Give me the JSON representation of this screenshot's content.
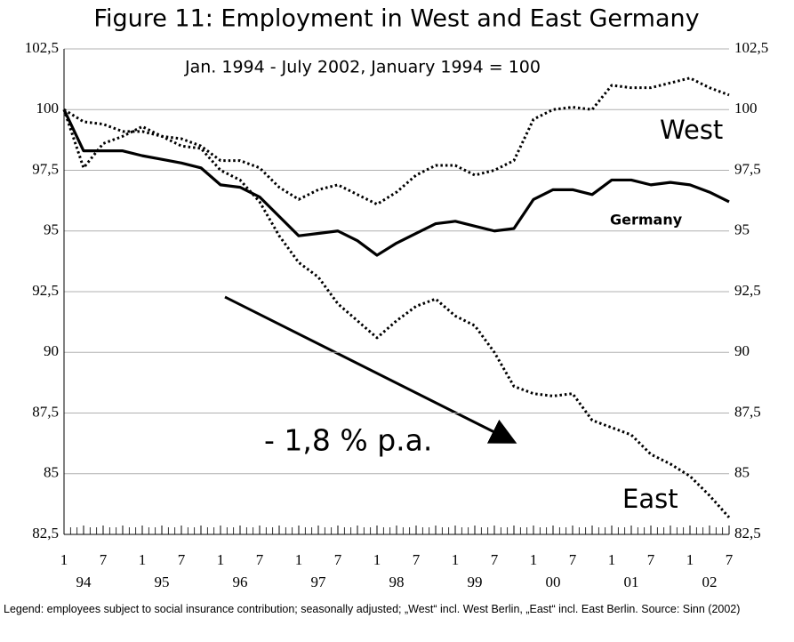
{
  "chart_data": {
    "type": "line",
    "title": "Figure 11: Employment in West and East Germany",
    "subtitle": "Jan. 1994 - July 2002,   January 1994 = 100",
    "annotation": "- 1,8 % p.a.",
    "footnote": "Legend: employees subject to social insurance contribution; seasonally adjusted; „West“ incl. West Berlin, „East“ incl. East Berlin. Source: Sinn (2002)",
    "categories": [
      "1",
      null,
      "7",
      null,
      "1",
      null,
      "7",
      null,
      "1",
      null,
      "7",
      null,
      "1",
      null,
      "7",
      null,
      "1",
      null,
      "7",
      null,
      "1",
      null,
      "7",
      null,
      "1",
      null,
      "7",
      null,
      "1",
      null,
      "7",
      null,
      "1",
      null,
      "7"
    ],
    "year_labels": [
      "94",
      "95",
      "96",
      "97",
      "98",
      "99",
      "00",
      "01",
      "02"
    ],
    "ylim": [
      82.5,
      102.5
    ],
    "yticks": [
      {
        "value": 102.5,
        "label": "102,5"
      },
      100,
      {
        "value": 97.5,
        "label": "97,5"
      },
      95,
      {
        "value": 92.5,
        "label": "92,5"
      },
      90,
      {
        "value": 87.5,
        "label": "87,5"
      },
      85,
      {
        "value": 82.5,
        "label": "82,5"
      }
    ],
    "grid": true,
    "series": [
      {
        "name": "West",
        "color": "#000000",
        "style": "dotted",
        "values": [
          100,
          99.5,
          99.4,
          99.1,
          99.1,
          98.9,
          98.8,
          98.5,
          97.9,
          97.9,
          97.6,
          96.8,
          96.3,
          96.7,
          96.9,
          96.5,
          96.1,
          96.6,
          97.3,
          97.7,
          97.7,
          97.3,
          97.5,
          97.9,
          99.6,
          100.0,
          100.1,
          100.0,
          101.0,
          100.9,
          100.9,
          101.1,
          101.3,
          100.9,
          100.6
        ]
      },
      {
        "name": "Germany",
        "color": "#000000",
        "style": "solid",
        "values": [
          100,
          98.3,
          98.3,
          98.3,
          98.1,
          97.95,
          97.8,
          97.6,
          96.9,
          96.8,
          96.4,
          95.6,
          94.8,
          94.9,
          95.0,
          94.6,
          94.0,
          94.5,
          94.9,
          95.3,
          95.4,
          95.2,
          95.0,
          95.1,
          96.3,
          96.7,
          96.7,
          96.5,
          97.1,
          97.1,
          96.9,
          97.0,
          96.9,
          96.6,
          96.2
        ]
      },
      {
        "name": "East",
        "color": "#000000",
        "style": "dotted",
        "values": [
          100,
          97.6,
          98.6,
          98.9,
          99.3,
          98.9,
          98.5,
          98.4,
          97.5,
          97.1,
          96.2,
          94.8,
          93.7,
          93.1,
          92.0,
          91.3,
          90.6,
          91.3,
          91.9,
          92.2,
          91.5,
          91.1,
          90.0,
          88.6,
          88.3,
          88.2,
          88.3,
          87.2,
          86.9,
          86.6,
          85.8,
          85.4,
          84.9,
          84.1,
          83.2
        ]
      }
    ]
  }
}
